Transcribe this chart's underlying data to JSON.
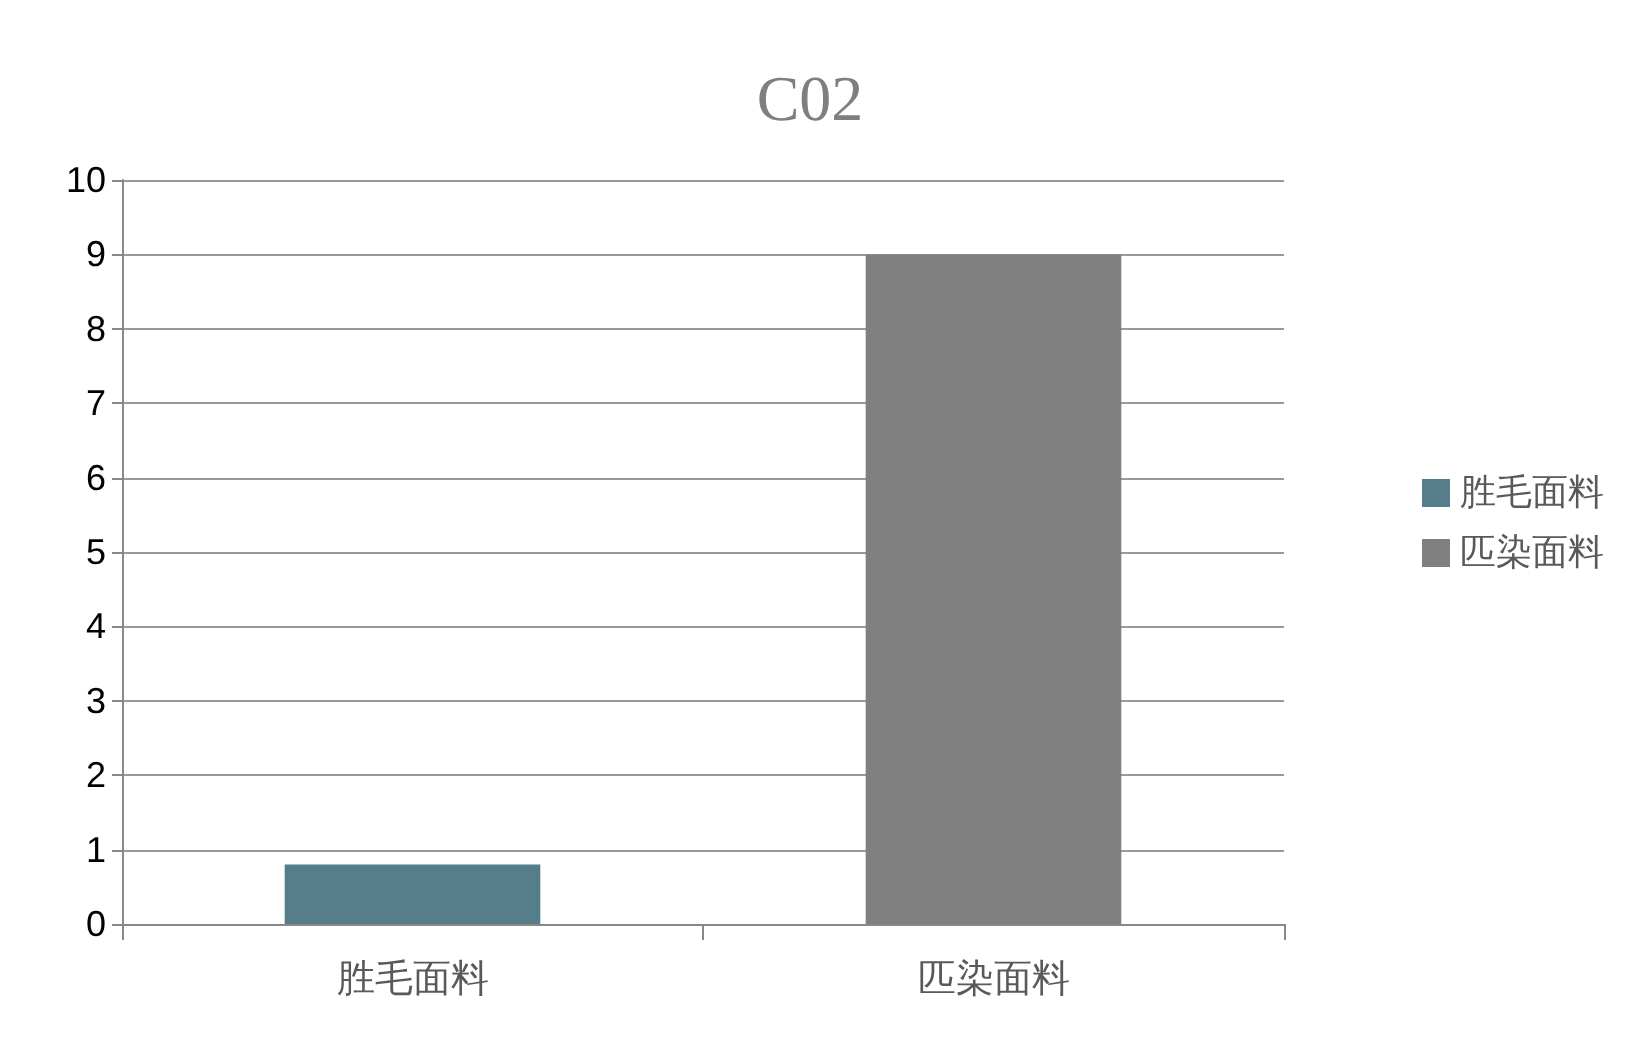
{
  "chart_data": {
    "type": "bar",
    "title": "C02",
    "categories": [
      "胜毛面料",
      "匹染面料"
    ],
    "series": [
      {
        "name": "胜毛面料",
        "color": "#567d8a",
        "values": [
          0.8,
          null
        ]
      },
      {
        "name": "匹染面料",
        "color": "#808080",
        "values": [
          null,
          9
        ]
      }
    ],
    "ylim": [
      0,
      10
    ],
    "yticks": [
      0,
      1,
      2,
      3,
      4,
      5,
      6,
      7,
      8,
      9,
      10
    ],
    "grid": "y",
    "legend": "right"
  }
}
